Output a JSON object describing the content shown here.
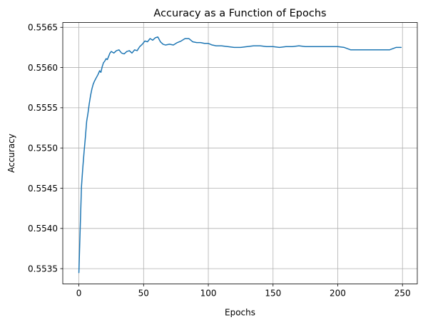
{
  "chart_data": {
    "type": "line",
    "title": "Accuracy as a Function of Epochs",
    "xlabel": "Epochs",
    "ylabel": "Accuracy",
    "xlim": [
      -12.45,
      261.45
    ],
    "ylim": [
      0.55331,
      0.55656
    ],
    "xticks": [
      0,
      50,
      100,
      150,
      200,
      250
    ],
    "xtick_labels": [
      "0",
      "50",
      "100",
      "150",
      "200",
      "250"
    ],
    "yticks": [
      0.5535,
      0.554,
      0.5545,
      0.555,
      0.5555,
      0.556,
      0.5565
    ],
    "ytick_labels": [
      "0.5535",
      "0.5540",
      "0.5545",
      "0.5550",
      "0.5555",
      "0.5560",
      "0.5565"
    ],
    "grid": true,
    "line_color": "#1f77b4",
    "series": [
      {
        "x": [
          0,
          1,
          2,
          3,
          4,
          5,
          6,
          7,
          8,
          9,
          10,
          11,
          12,
          13,
          14,
          15,
          16,
          17,
          18,
          19,
          20,
          21,
          22,
          23,
          24,
          25,
          27,
          29,
          31,
          33,
          35,
          37,
          39,
          41,
          43,
          45,
          47,
          49,
          51,
          53,
          55,
          57,
          59,
          61,
          63,
          65,
          67,
          70,
          73,
          76,
          79,
          82,
          85,
          88,
          91,
          94,
          97,
          100,
          103,
          106,
          110,
          115,
          120,
          125,
          130,
          135,
          140,
          145,
          150,
          155,
          160,
          165,
          170,
          175,
          180,
          185,
          190,
          195,
          200,
          205,
          210,
          215,
          220,
          225,
          230,
          235,
          240,
          245,
          249
        ],
        "y": [
          0.55345,
          0.554,
          0.55452,
          0.55475,
          0.55495,
          0.55513,
          0.55533,
          0.55543,
          0.55555,
          0.55565,
          0.55573,
          0.55579,
          0.55583,
          0.55586,
          0.55589,
          0.55592,
          0.55596,
          0.55594,
          0.55601,
          0.55606,
          0.55608,
          0.55611,
          0.5561,
          0.55614,
          0.55618,
          0.5562,
          0.55618,
          0.55621,
          0.55622,
          0.55618,
          0.55617,
          0.5562,
          0.55621,
          0.55618,
          0.55622,
          0.55621,
          0.55626,
          0.55629,
          0.55633,
          0.55632,
          0.55636,
          0.55634,
          0.55637,
          0.55638,
          0.55632,
          0.55629,
          0.55628,
          0.55629,
          0.55628,
          0.55631,
          0.55633,
          0.55636,
          0.55636,
          0.55632,
          0.55631,
          0.55631,
          0.5563,
          0.5563,
          0.55628,
          0.55627,
          0.55627,
          0.55626,
          0.55625,
          0.55625,
          0.55626,
          0.55627,
          0.55627,
          0.55626,
          0.55626,
          0.55625,
          0.55626,
          0.55626,
          0.55627,
          0.55626,
          0.55626,
          0.55626,
          0.55626,
          0.55626,
          0.55626,
          0.55625,
          0.55622,
          0.55622,
          0.55622,
          0.55622,
          0.55622,
          0.55622,
          0.55622,
          0.55625,
          0.55625
        ]
      }
    ]
  }
}
